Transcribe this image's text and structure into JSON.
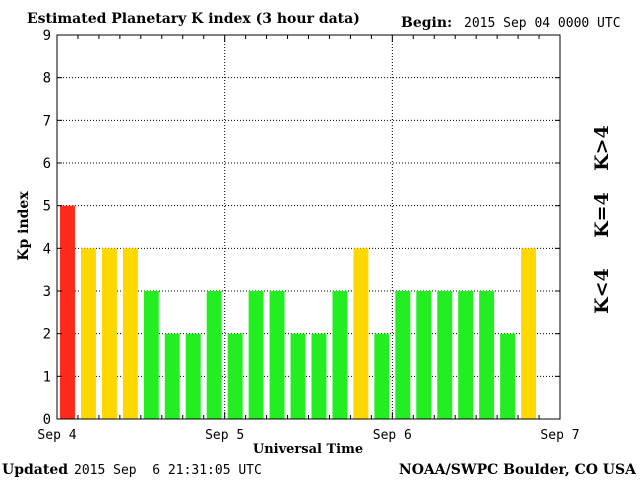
{
  "header": {
    "title": "Estimated Planetary K index (3 hour data)",
    "begin_label": "Begin:",
    "begin_value": "2015 Sep 04 0000 UTC"
  },
  "footer": {
    "updated_label": "Updated",
    "updated_value": "2015 Sep  6 21:31:05 UTC",
    "source": "NOAA/SWPC Boulder, CO USA"
  },
  "legend": {
    "above": "K>4",
    "equal": "K=4",
    "below": "K<4"
  },
  "colors": {
    "above": "#ff2a1a",
    "equal": "#ffd800",
    "below": "#22ee22",
    "grid": "#000000",
    "axis": "#000000"
  },
  "chart_data": {
    "type": "bar",
    "title": "Estimated Planetary K index (3 hour data)",
    "xlabel": "Universal Time",
    "ylabel": "Kp index",
    "ylim": [
      0,
      9
    ],
    "yticks": [
      "0",
      "1",
      "2",
      "3",
      "4",
      "5",
      "6",
      "7",
      "8",
      "9"
    ],
    "xticks": [
      "Sep 4",
      "Sep 5",
      "Sep 6",
      "Sep 7"
    ],
    "interval_hours": 3,
    "grid": true,
    "values": [
      5,
      4,
      4,
      4,
      3,
      2,
      2,
      3,
      2,
      3,
      3,
      2,
      2,
      3,
      4,
      2,
      3,
      3,
      3,
      3,
      3,
      2,
      4
    ]
  }
}
